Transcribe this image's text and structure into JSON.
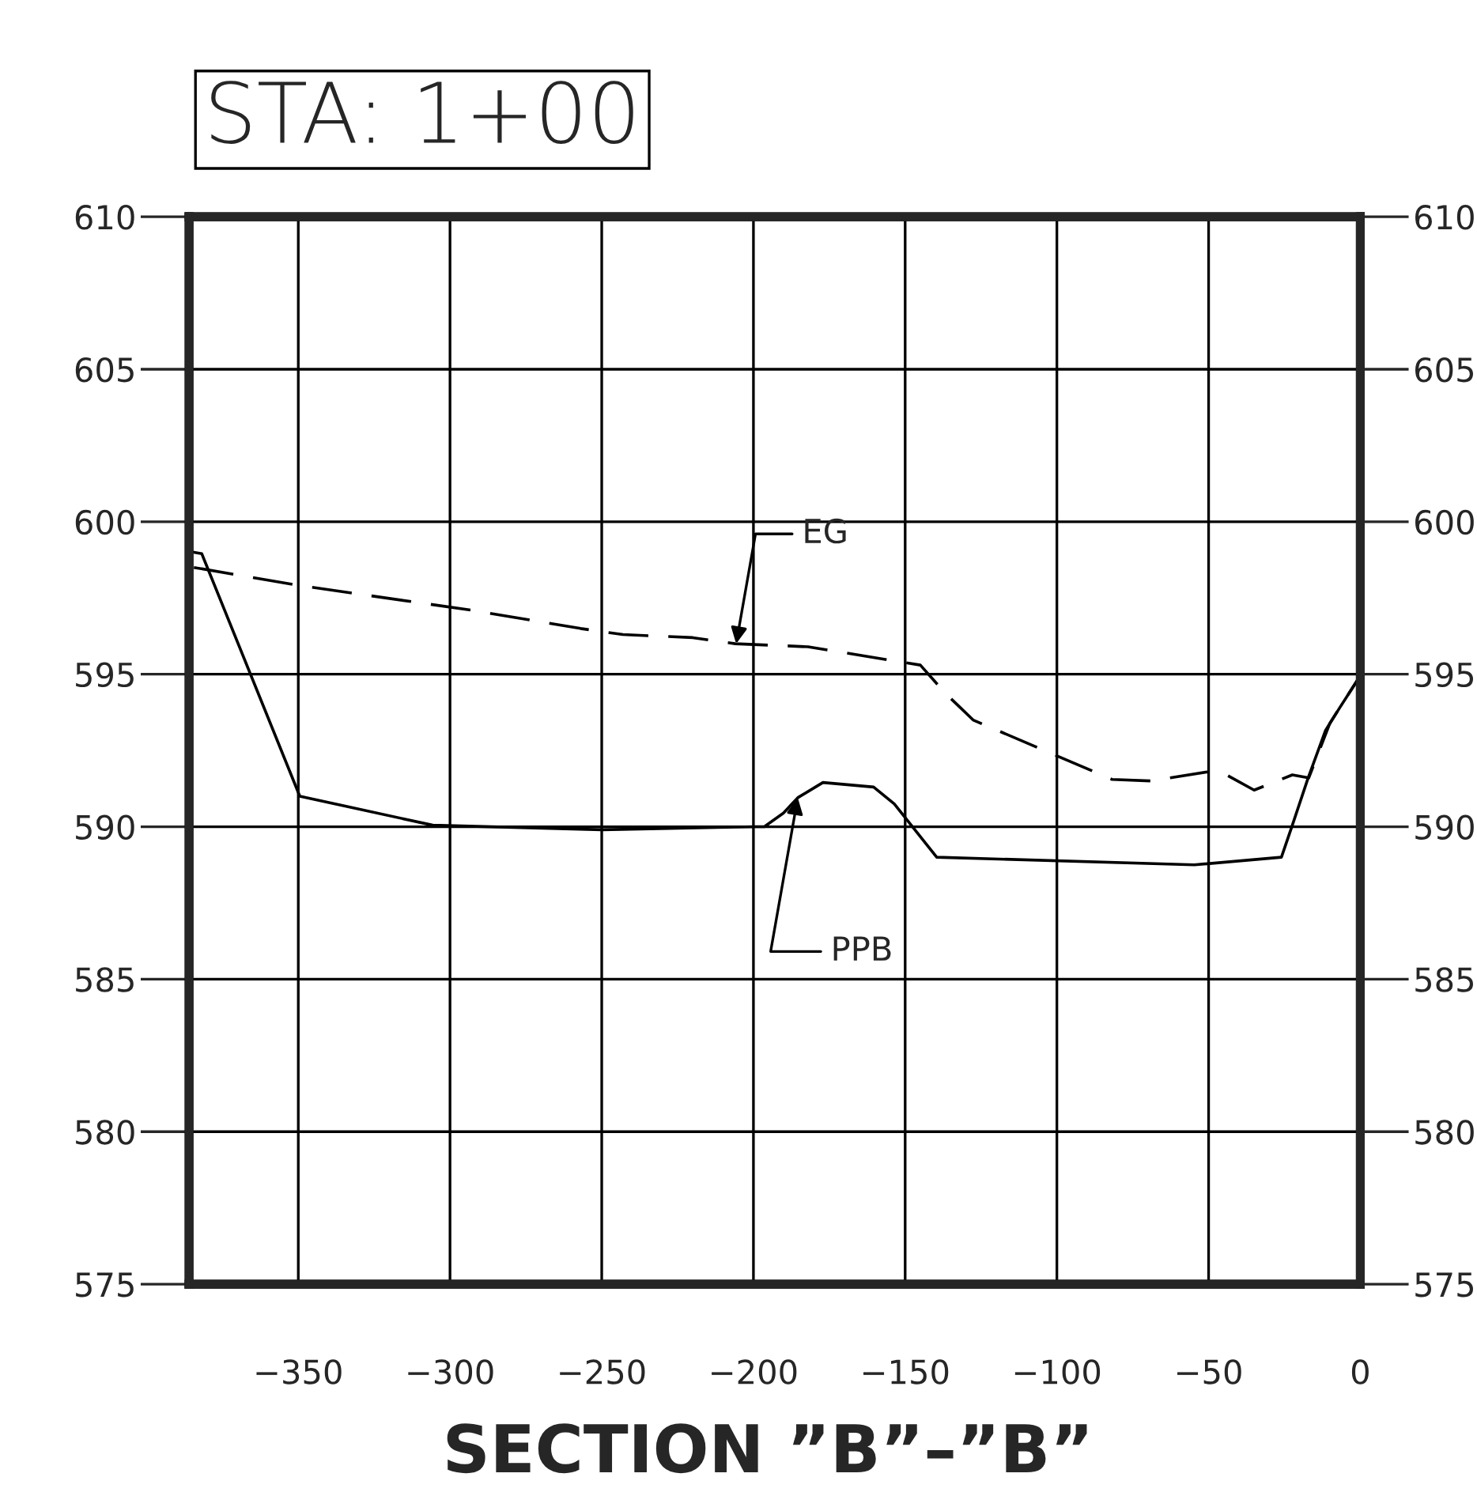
{
  "chart_data": {
    "type": "line",
    "title": "STA: 1+00",
    "xlabel": "SECTION ”B”–”B”",
    "series": [
      {
        "color": "#000000",
        "line_style": "dashed",
        "x": [
          -384.4,
          -349,
          -293,
          -257,
          -243,
          -220,
          -206,
          -182,
          -145,
          -137,
          -127.6,
          -81.8,
          -69,
          -47,
          -45,
          -35,
          -22.4,
          -17,
          -10,
          -1,
          0
        ],
        "values": [
          598.5,
          597.9,
          597.1,
          596.5,
          596.3,
          596.2,
          596.0,
          595.9,
          595.3,
          594.4,
          593.5,
          591.55,
          591.5,
          591.85,
          591.75,
          591.2,
          591.7,
          591.6,
          593.4,
          594.8,
          595.0
        ]
      },
      {
        "color": "#000000",
        "line_style": "solid",
        "x": [
          -384.4,
          -381.8,
          -349.5,
          -305.7,
          -250,
          -199.5,
          -196.4,
          -190.1,
          -185.4,
          -177.1,
          -160.4,
          -153.6,
          -139.6,
          -54.7,
          -26.0,
          -22.4,
          -17.2,
          -11.5,
          -6.8,
          -1.0,
          0
        ],
        "values": [
          599.0,
          598.95,
          591.0,
          590.05,
          589.9,
          590.0,
          590.0,
          590.45,
          590.95,
          591.45,
          591.3,
          590.75,
          589.0,
          588.75,
          589.0,
          590.05,
          591.6,
          593.15,
          593.9,
          594.8,
          595.0
        ]
      }
    ],
    "annotations": [
      {
        "text": "EG",
        "x": -205.7,
        "y": 596.0
      },
      {
        "text": "PPB",
        "x": -185.4,
        "y": 590.95
      }
    ],
    "xlim": [
      -386,
      0
    ],
    "xticks": [
      {
        "value": -350,
        "label": "−350"
      },
      {
        "value": -300,
        "label": "−300"
      },
      {
        "value": -250,
        "label": "−250"
      },
      {
        "value": -200,
        "label": "−200"
      },
      {
        "value": -150,
        "label": "−150"
      },
      {
        "value": -100,
        "label": "−100"
      },
      {
        "value": -50,
        "label": "−50"
      },
      0
    ],
    "ylim": [
      575,
      610
    ],
    "yticks": [
      575,
      580,
      585,
      590,
      595,
      600,
      605,
      610
    ],
    "y2lim": [
      575,
      610
    ],
    "y2ticks": [
      575,
      580,
      585,
      590,
      595,
      600,
      605,
      610
    ],
    "grid": true
  }
}
